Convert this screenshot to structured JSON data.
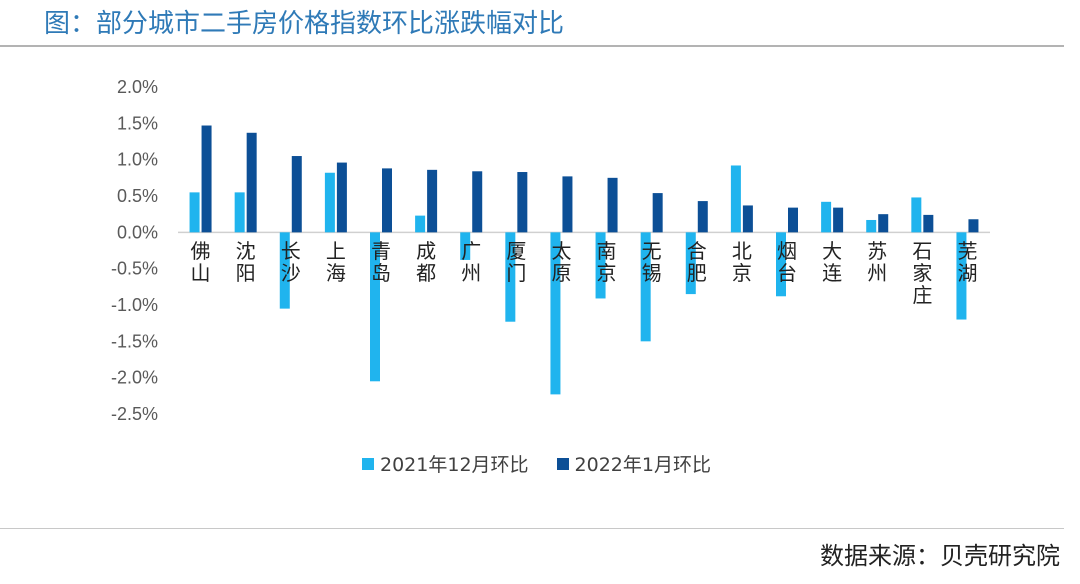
{
  "header": {
    "title": "图：部分城市二手房价格指数环比涨跌幅对比"
  },
  "footer": {
    "source": "数据来源：贝壳研究院"
  },
  "colors": {
    "series1": "#20b4ee",
    "series2": "#0c4f96",
    "axis": "#d0d0d0"
  },
  "chart_data": {
    "type": "bar",
    "title": "图：部分城市二手房价格指数环比涨跌幅对比",
    "xlabel": "",
    "ylabel": "",
    "ylim": [
      -2.5,
      2.0
    ],
    "yticks": [
      "2.0%",
      "1.5%",
      "1.0%",
      "0.5%",
      "0.0%",
      "-0.5%",
      "-1.0%",
      "-1.5%",
      "-2.0%",
      "-2.5%"
    ],
    "categories": [
      "佛山",
      "沈阳",
      "长沙",
      "上海",
      "青岛",
      "成都",
      "广州",
      "厦门",
      "太原",
      "南京",
      "无锡",
      "合肥",
      "北京",
      "烟台",
      "大连",
      "苏州",
      "石家庄",
      "芜湖"
    ],
    "series": [
      {
        "name": "2021年12月环比",
        "values": [
          0.55,
          0.55,
          -1.05,
          0.82,
          -2.05,
          0.23,
          -0.38,
          -1.23,
          -2.23,
          -0.91,
          -1.5,
          -0.85,
          0.92,
          -0.88,
          0.42,
          0.17,
          0.48,
          -1.2
        ]
      },
      {
        "name": "2022年1月环比",
        "values": [
          1.47,
          1.37,
          1.05,
          0.96,
          0.88,
          0.86,
          0.84,
          0.83,
          0.77,
          0.75,
          0.54,
          0.43,
          0.37,
          0.34,
          0.34,
          0.25,
          0.24,
          0.18
        ]
      }
    ],
    "legend": "bottom",
    "grid": false
  }
}
